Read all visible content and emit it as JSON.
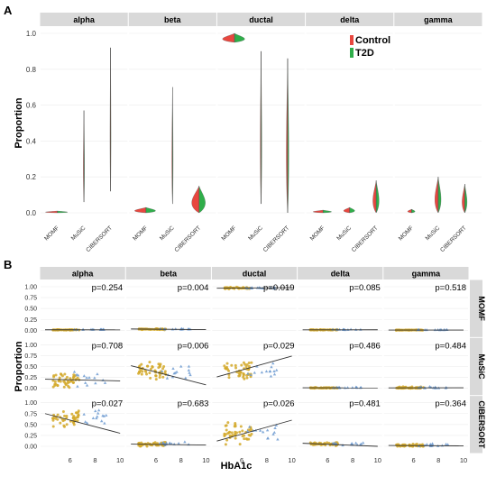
{
  "chart_data": [
    {
      "panel": "A",
      "type": "violin",
      "ylabel": "Proportion",
      "yticks": [
        "0.0",
        "0.2",
        "0.4",
        "0.6",
        "0.8",
        "1.0"
      ],
      "ylim": [
        0,
        1.0
      ],
      "methods": [
        "MOMF",
        "MuSiC",
        "CIBERSORT"
      ],
      "legend": {
        "placement": "top-right",
        "entries": [
          {
            "label": "Control",
            "color": "#e8473f"
          },
          {
            "label": "T2D",
            "color": "#2fae4a"
          }
        ]
      },
      "facets": [
        {
          "name": "alpha",
          "violins": [
            {
              "method": "MOMF",
              "min": 0.0,
              "max": 0.01,
              "spread": 0.9
            },
            {
              "method": "MuSiC",
              "min": 0.06,
              "max": 0.57,
              "spread": 0.05
            },
            {
              "method": "CIBERSORT",
              "min": 0.12,
              "max": 0.92,
              "spread": 0.04
            }
          ]
        },
        {
          "name": "beta",
          "violins": [
            {
              "method": "MOMF",
              "min": 0.0,
              "max": 0.03,
              "spread": 0.85
            },
            {
              "method": "MuSiC",
              "min": 0.05,
              "max": 0.7,
              "spread": 0.05
            },
            {
              "method": "CIBERSORT",
              "min": 0.0,
              "max": 0.15,
              "spread": 0.55
            }
          ]
        },
        {
          "name": "ductal",
          "violins": [
            {
              "method": "MOMF",
              "min": 0.95,
              "max": 1.0,
              "spread": 0.9
            },
            {
              "method": "MuSiC",
              "min": 0.05,
              "max": 0.9,
              "spread": 0.06
            },
            {
              "method": "CIBERSORT",
              "min": 0.0,
              "max": 0.86,
              "spread": 0.1
            }
          ]
        },
        {
          "name": "delta",
          "violins": [
            {
              "method": "MOMF",
              "min": 0.0,
              "max": 0.015,
              "spread": 0.75
            },
            {
              "method": "MuSiC",
              "min": 0.0,
              "max": 0.03,
              "spread": 0.45
            },
            {
              "method": "CIBERSORT",
              "min": 0.0,
              "max": 0.18,
              "spread": 0.25
            }
          ]
        },
        {
          "name": "gamma",
          "violins": [
            {
              "method": "MOMF",
              "min": 0.0,
              "max": 0.02,
              "spread": 0.3
            },
            {
              "method": "MuSiC",
              "min": 0.0,
              "max": 0.2,
              "spread": 0.25
            },
            {
              "method": "CIBERSORT",
              "min": 0.0,
              "max": 0.16,
              "spread": 0.2
            }
          ]
        }
      ]
    },
    {
      "panel": "B",
      "type": "scatter",
      "xlabel": "HbA1c",
      "ylabel": "Proportion",
      "xlim": [
        4,
        10
      ],
      "ylim": [
        0,
        1.0
      ],
      "xticks": [
        "6",
        "8",
        "10"
      ],
      "yticks": [
        "0.00",
        "0.25",
        "0.50",
        "0.75",
        "1.00"
      ],
      "point_colors": {
        "control": "#d4a92a",
        "t2d": "#6f9bd1"
      },
      "rows": [
        "MOMF",
        "MuSiC",
        "CIBERSORT"
      ],
      "columns": [
        "alpha",
        "beta",
        "ductal",
        "delta",
        "gamma"
      ],
      "cells": [
        {
          "row": "MOMF",
          "col": "alpha",
          "p": "p=0.254",
          "center": 0.01,
          "spread": 0.005,
          "fit": [
            0.012,
            0.01
          ]
        },
        {
          "row": "MOMF",
          "col": "beta",
          "p": "p=0.004",
          "center": 0.025,
          "spread": 0.01,
          "fit": [
            0.03,
            0.015
          ]
        },
        {
          "row": "MOMF",
          "col": "ductal",
          "p": "p=0.019",
          "center": 0.97,
          "spread": 0.015,
          "fit": [
            0.965,
            0.978
          ]
        },
        {
          "row": "MOMF",
          "col": "delta",
          "p": "p=0.085",
          "center": 0.01,
          "spread": 0.005,
          "fit": [
            0.01,
            0.012
          ]
        },
        {
          "row": "MOMF",
          "col": "gamma",
          "p": "p=0.518",
          "center": 0.005,
          "spread": 0.003,
          "fit": [
            0.005,
            0.006
          ]
        },
        {
          "row": "MuSiC",
          "col": "alpha",
          "p": "p=0.708",
          "center": 0.2,
          "spread": 0.12,
          "fit": [
            0.21,
            0.17
          ]
        },
        {
          "row": "MuSiC",
          "col": "beta",
          "p": "p=0.006",
          "center": 0.38,
          "spread": 0.14,
          "fit": [
            0.52,
            0.08
          ]
        },
        {
          "row": "MuSiC",
          "col": "ductal",
          "p": "p=0.029",
          "center": 0.42,
          "spread": 0.17,
          "fit": [
            0.26,
            0.74
          ]
        },
        {
          "row": "MuSiC",
          "col": "delta",
          "p": "p=0.486",
          "center": 0.01,
          "spread": 0.008,
          "fit": [
            0.012,
            0.01
          ]
        },
        {
          "row": "MuSiC",
          "col": "gamma",
          "p": "p=0.484",
          "center": 0.01,
          "spread": 0.02,
          "fit": [
            0.01,
            0.012
          ]
        },
        {
          "row": "CIBERSORT",
          "col": "alpha",
          "p": "p=0.027",
          "center": 0.62,
          "spread": 0.15,
          "fit": [
            0.75,
            0.3
          ]
        },
        {
          "row": "CIBERSORT",
          "col": "beta",
          "p": "p=0.683",
          "center": 0.05,
          "spread": 0.04,
          "fit": [
            0.05,
            0.03
          ]
        },
        {
          "row": "CIBERSORT",
          "col": "ductal",
          "p": "p=0.026",
          "center": 0.3,
          "spread": 0.18,
          "fit": [
            0.12,
            0.6
          ]
        },
        {
          "row": "CIBERSORT",
          "col": "delta",
          "p": "p=0.481",
          "center": 0.05,
          "spread": 0.03,
          "fit": [
            0.07,
            0.0
          ]
        },
        {
          "row": "CIBERSORT",
          "col": "gamma",
          "p": "p=0.364",
          "center": 0.02,
          "spread": 0.03,
          "fit": [
            0.02,
            0.01
          ]
        }
      ]
    }
  ],
  "labels": {
    "panel_a": "A",
    "panel_b": "B"
  }
}
